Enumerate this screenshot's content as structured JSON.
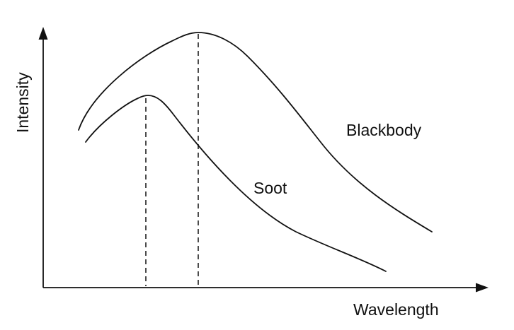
{
  "diagram": {
    "axes": {
      "x_label": "Wavelength",
      "y_label": "Intensity"
    },
    "curves": {
      "blackbody": {
        "label": "Blackbody"
      },
      "soot": {
        "label": "Soot"
      }
    },
    "colors": {
      "stroke": "#111111",
      "text": "#111111",
      "background": "#ffffff"
    }
  }
}
